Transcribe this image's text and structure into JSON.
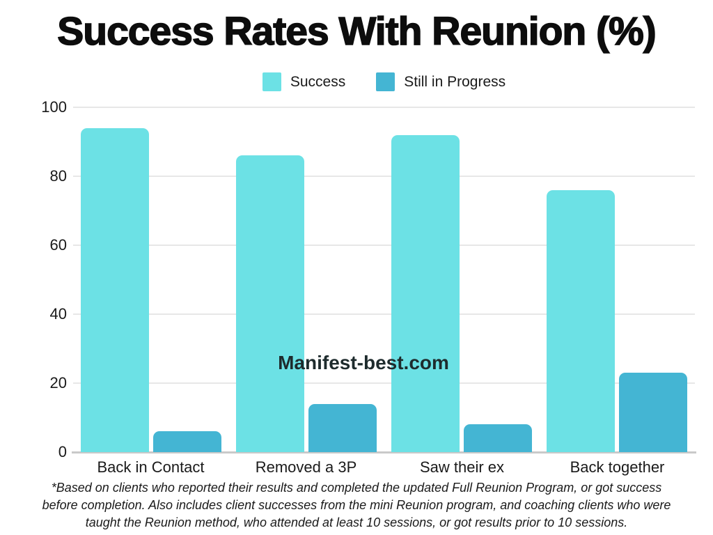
{
  "title": "Success Rates With Reunion (%)",
  "watermark": "Manifest-best.com",
  "footnote": {
    "lines": [
      "*Based on clients who reported their results and completed the updated Full Reunion Program, or got success",
      "before completion. Also includes client successes from the mini Reunion program, and coaching clients who were",
      "taught the Reunion method, who attended at least 10 sessions, or got results prior to 10 sessions."
    ]
  },
  "colors": {
    "success": "#6CE1E5",
    "progress": "#44B5D3",
    "gridline": "#e7e7e7",
    "baseline": "#c9c9c9",
    "title_text": "#0d0d0d",
    "axis_text": "#1a1a1a"
  },
  "chart_data": {
    "type": "bar",
    "title": "Success Rates With Reunion (%)",
    "categories": [
      "Back in Contact",
      "Removed a 3P",
      "Saw their ex",
      "Back together"
    ],
    "series": [
      {
        "name": "Success",
        "color": "#6CE1E5",
        "values": [
          94,
          86,
          92,
          76
        ]
      },
      {
        "name": "Still in Progress",
        "color": "#44B5D3",
        "values": [
          6,
          14,
          8,
          23
        ]
      }
    ],
    "xlabel": "",
    "ylabel": "",
    "ylim": [
      0,
      100
    ],
    "yticks": [
      0,
      20,
      40,
      60,
      80,
      100
    ],
    "grid": true,
    "legend_position": "top-center"
  }
}
